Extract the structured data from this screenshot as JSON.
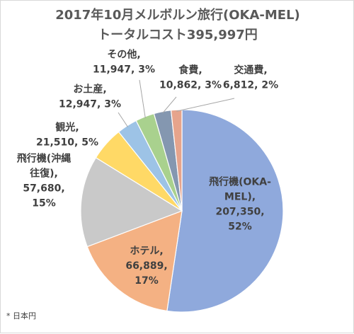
{
  "chart_data": {
    "type": "pie",
    "title": "2017年10月メルボルン旅行(OKA-MEL)",
    "subtitle": "トータルコスト395,997円",
    "footnote": "* 日本円",
    "slices": [
      {
        "label_lines": [
          "飛行機(OKA-",
          "MEL),",
          "207,350,",
          "52%"
        ],
        "value": 207350,
        "percent": 52,
        "color": "#8fa9dc"
      },
      {
        "label_lines": [
          "ホテル,",
          "66,889,",
          "17%"
        ],
        "value": 66889,
        "percent": 17,
        "color": "#f4b183"
      },
      {
        "label_lines": [
          "飛行機(沖縄",
          "往復),",
          "57,680,",
          "15%"
        ],
        "value": 57680,
        "percent": 15,
        "color": "#c9c9c9"
      },
      {
        "label_lines": [
          "観光,",
          "21,510, 5%"
        ],
        "value": 21510,
        "percent": 5,
        "color": "#ffd966"
      },
      {
        "label_lines": [
          "お土産,",
          "12,947, 3%"
        ],
        "value": 12947,
        "percent": 3,
        "color": "#9dc3e6"
      },
      {
        "label_lines": [
          "その他,",
          "11,947, 3%"
        ],
        "value": 11947,
        "percent": 3,
        "color": "#a9d18e"
      },
      {
        "label_lines": [
          "食費,",
          "10,862, 3%"
        ],
        "value": 10862,
        "percent": 3,
        "color": "#8497b0"
      },
      {
        "label_lines": [
          "交通費,",
          "6,812, 2%"
        ],
        "value": 6812,
        "percent": 2,
        "color": "#e6a48c"
      }
    ]
  }
}
